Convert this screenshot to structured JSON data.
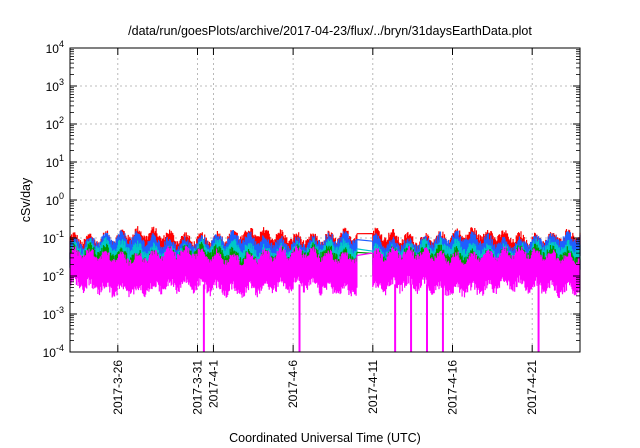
{
  "chart_data": {
    "type": "line",
    "title": "/data/run/goesPlots/archive/2017-04-23/flux/../bryn/31daysEarthData.plot",
    "xlabel": "Coordinated Universal Time (UTC)",
    "ylabel": "cSv/day",
    "yscale": "log",
    "ylim": [
      0.0001,
      10000
    ],
    "xlim": [
      "2017-03-23",
      "2017-04-24"
    ],
    "grid": true,
    "legend": "none",
    "y_ticks": [
      {
        "base": "10",
        "exp": "-4",
        "value": 0.0001
      },
      {
        "base": "10",
        "exp": "-3",
        "value": 0.001
      },
      {
        "base": "10",
        "exp": "-2",
        "value": 0.01
      },
      {
        "base": "10",
        "exp": "-1",
        "value": 0.1
      },
      {
        "base": "10",
        "exp": "0",
        "value": 1
      },
      {
        "base": "10",
        "exp": "1",
        "value": 10
      },
      {
        "base": "10",
        "exp": "2",
        "value": 100
      },
      {
        "base": "10",
        "exp": "3",
        "value": 1000
      },
      {
        "base": "10",
        "exp": "4",
        "value": 10000
      }
    ],
    "x_ticks": [
      {
        "date": "2017-03-26",
        "label": "2017-3-26"
      },
      {
        "date": "2017-03-31",
        "label": "2017-3-31"
      },
      {
        "date": "2017-04-01",
        "label": "2017-4-1"
      },
      {
        "date": "2017-04-06",
        "label": "2017-4-6"
      },
      {
        "date": "2017-04-11",
        "label": "2017-4-11"
      },
      {
        "date": "2017-04-16",
        "label": "2017-4-16"
      },
      {
        "date": "2017-04-21",
        "label": "2017-4-21"
      }
    ],
    "data_gap": [
      "2017-04-10",
      "2017-04-11"
    ],
    "series": [
      {
        "color": "#ff0000",
        "typical_min": 0.035,
        "typical_max": 0.11
      },
      {
        "color": "#1e5fff",
        "typical_min": 0.025,
        "typical_max": 0.085
      },
      {
        "color": "#00c8c8",
        "typical_min": 0.018,
        "typical_max": 0.055
      },
      {
        "color": "#009900",
        "typical_min": 0.013,
        "typical_max": 0.04
      },
      {
        "color": "#ff00ff",
        "typical_min": 0.005,
        "typical_max": 0.035
      }
    ],
    "magenta_dropouts": [
      {
        "date": "2017-03-31",
        "min_value": 0.0001
      },
      {
        "date": "2017-04-06",
        "min_value": 0.0001
      },
      {
        "date": "2017-04-12",
        "min_value": 0.0001
      },
      {
        "date": "2017-04-13",
        "min_value": 0.0001
      },
      {
        "date": "2017-04-14",
        "min_value": 0.0001
      },
      {
        "date": "2017-04-15",
        "min_value": 0.0001
      },
      {
        "date": "2017-04-21",
        "min_value": 0.0001
      }
    ]
  }
}
